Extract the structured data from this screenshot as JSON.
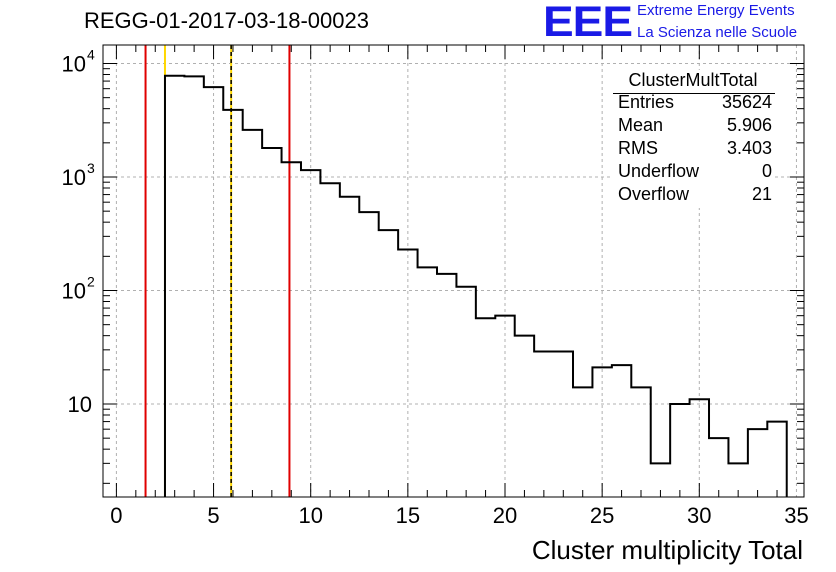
{
  "title": "REGG-01-2017-03-18-00023",
  "logo": {
    "mark": "EEE",
    "line1": "Extreme Energy Events",
    "line2": "La Scienza nelle Scuole",
    "color": "#1a1ae6"
  },
  "stats_box": {
    "name": "ClusterMultTotal",
    "rows": [
      {
        "key": "Entries",
        "value": "35624"
      },
      {
        "key": "Mean",
        "value": "5.906"
      },
      {
        "key": "RMS",
        "value": "3.403"
      },
      {
        "key": "Underflow",
        "value": "0"
      },
      {
        "key": "Overflow",
        "value": "21"
      }
    ]
  },
  "chart_data": {
    "type": "histogram",
    "title": "REGG-01-2017-03-18-00023",
    "xlabel": "Cluster multiplicity Total",
    "ylabel": "",
    "xlim": [
      -0.5,
      35
    ],
    "ylim": [
      1.5,
      15000
    ],
    "y_scale": "log",
    "grid": true,
    "bin_width": 1,
    "bin_starts": [
      2.5,
      3.5,
      4.5,
      5.5,
      6.5,
      7.5,
      8.5,
      9.5,
      10.5,
      11.5,
      12.5,
      13.5,
      14.5,
      15.5,
      16.5,
      17.5,
      18.5,
      19.5,
      20.5,
      21.5,
      22.5,
      23.5,
      24.5,
      25.5,
      26.5,
      27.5,
      28.5,
      29.5,
      30.5,
      31.5,
      32.5,
      33.5
    ],
    "counts": [
      7800,
      7700,
      6200,
      3900,
      2600,
      1800,
      1350,
      1150,
      880,
      670,
      490,
      340,
      230,
      160,
      140,
      108,
      57,
      60,
      40,
      29,
      29,
      14,
      21,
      22,
      14,
      3,
      10,
      11,
      5,
      3,
      6,
      7
    ],
    "x_ticks": [
      0,
      5,
      10,
      15,
      20,
      25,
      30,
      35
    ],
    "y_ticks": [
      {
        "value": 10,
        "base": "10",
        "exp": ""
      },
      {
        "value": 100,
        "base": "10",
        "exp": "2"
      },
      {
        "value": 1000,
        "base": "10",
        "exp": "3"
      },
      {
        "value": 10000,
        "base": "10",
        "exp": "4"
      }
    ],
    "vertical_lines": [
      {
        "x": 1.5,
        "color": "#e00000"
      },
      {
        "x": 2.5,
        "color": "#ffd700"
      },
      {
        "x": 5.906,
        "color": "#ffd700"
      },
      {
        "x": 5.906,
        "color": "#000000",
        "dashed": true
      },
      {
        "x": 8.906,
        "color": "#e00000"
      }
    ],
    "line_color": "#000000"
  }
}
